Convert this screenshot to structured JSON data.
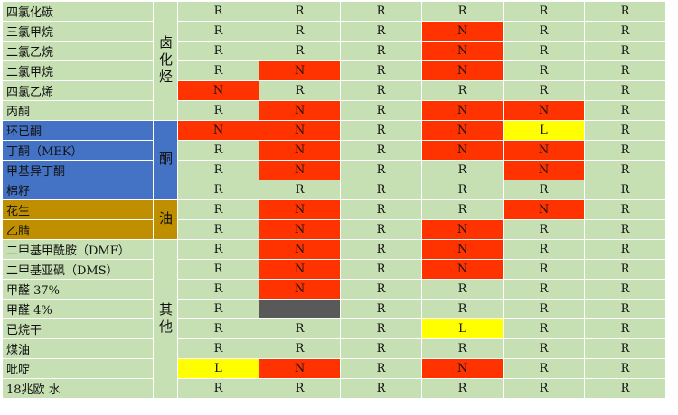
{
  "colors": {
    "green": "#c6e0b4",
    "blue": "#4472c4",
    "orange": "#bf8f00",
    "N": "#ff3300",
    "L": "#ffff00",
    "dash": "#595959"
  },
  "groups": [
    {
      "label": "卤化烃",
      "color": "green"
    },
    {
      "label": "酮",
      "color": "blue"
    },
    {
      "label": "油",
      "color": "orange"
    },
    {
      "label": "其他",
      "color": "green"
    }
  ],
  "rows": [
    {
      "name": "四氯化碳",
      "group": 0,
      "values": [
        "R",
        "R",
        "R",
        "R",
        "R",
        "R"
      ]
    },
    {
      "name": "三氯甲烷",
      "group": 0,
      "values": [
        "R",
        "R",
        "R",
        "N",
        "R",
        "R"
      ]
    },
    {
      "name": "二氯乙烷",
      "group": 0,
      "values": [
        "R",
        "R",
        "R",
        "N",
        "R",
        "R"
      ]
    },
    {
      "name": "二氯甲烷",
      "group": 0,
      "values": [
        "R",
        "N",
        "R",
        "N",
        "R",
        "R"
      ]
    },
    {
      "name": "四氯乙烯",
      "group": 0,
      "values": [
        "N",
        "R",
        "R",
        "R",
        "R",
        "R"
      ]
    },
    {
      "name": "丙酮",
      "group": 0,
      "values": [
        "R",
        "N",
        "R",
        "N",
        "N",
        "R"
      ]
    },
    {
      "name": "环已酮",
      "group": 1,
      "values": [
        "N",
        "N",
        "R",
        "N",
        "L",
        "R"
      ]
    },
    {
      "name": "丁酮（MEK）",
      "group": 1,
      "values": [
        "R",
        "N",
        "R",
        "N",
        "N",
        "R"
      ]
    },
    {
      "name": "甲基异丁酮",
      "group": 1,
      "values": [
        "R",
        "N",
        "R",
        "R",
        "N",
        "R"
      ]
    },
    {
      "name": "棉籽",
      "group": 1,
      "values": [
        "R",
        "R",
        "R",
        "R",
        "R",
        "R"
      ]
    },
    {
      "name": "花生",
      "group": 2,
      "values": [
        "R",
        "N",
        "R",
        "R",
        "N",
        "R"
      ]
    },
    {
      "name": "乙腈",
      "group": 2,
      "values": [
        "R",
        "N",
        "R",
        "N",
        "R",
        "R"
      ]
    },
    {
      "name": "二甲基甲酰胺（DMF）",
      "group": 3,
      "values": [
        "R",
        "N",
        "R",
        "N",
        "R",
        "R"
      ]
    },
    {
      "name": "二甲基亚砜（DMS）",
      "group": 3,
      "values": [
        "R",
        "N",
        "R",
        "N",
        "R",
        "R"
      ]
    },
    {
      "name": "甲醛 37%",
      "group": 3,
      "values": [
        "R",
        "N",
        "R",
        "R",
        "R",
        "R"
      ]
    },
    {
      "name": "甲醛 4%",
      "group": 3,
      "values": [
        "R",
        "—",
        "R",
        "R",
        "R",
        "R"
      ]
    },
    {
      "name": "已烷干",
      "group": 3,
      "values": [
        "R",
        "R",
        "R",
        "L",
        "R",
        "R"
      ]
    },
    {
      "name": "煤油",
      "group": 3,
      "values": [
        "R",
        "R",
        "R",
        "R",
        "R",
        "R"
      ]
    },
    {
      "name": "吡啶",
      "group": 3,
      "values": [
        "L",
        "N",
        "R",
        "N",
        "R",
        "R"
      ]
    },
    {
      "name": "18兆欧 水",
      "group": 3,
      "values": [
        "R",
        "R",
        "R",
        "R",
        "R",
        "R"
      ]
    }
  ]
}
